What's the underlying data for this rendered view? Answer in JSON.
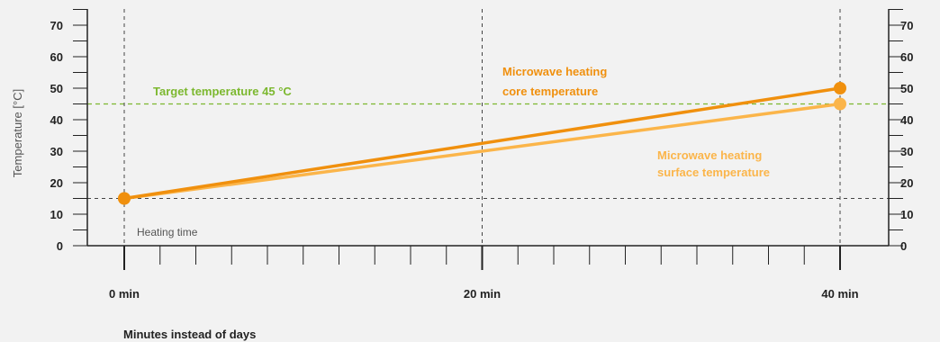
{
  "chart_data": {
    "type": "line",
    "title": "",
    "xlabel": "Minutes instead of days",
    "ylabel": "Temperature [°C]",
    "x_note": "Heating time",
    "x": [
      0,
      40
    ],
    "x_ticks": [
      {
        "value": 0,
        "label": "0 min"
      },
      {
        "value": 20,
        "label": "20 min"
      },
      {
        "value": 40,
        "label": "40 min"
      }
    ],
    "xlim": [
      0,
      40
    ],
    "ylim": [
      0,
      75
    ],
    "y_ticks": [
      0,
      10,
      20,
      30,
      40,
      50,
      60,
      70
    ],
    "y_ticks_right": true,
    "grid": false,
    "series": [
      {
        "name": "Microwave heating core temperature",
        "label_lines": [
          "Microwave heating",
          "core temperature"
        ],
        "values": [
          15,
          50
        ],
        "color": "#f0900e"
      },
      {
        "name": "Microwave heating surface temperature",
        "label_lines": [
          "Microwave heating",
          "surface temperature"
        ],
        "values": [
          15,
          45
        ],
        "color": "#fbb54a"
      }
    ],
    "reference_lines": [
      {
        "axis": "y",
        "value": 45,
        "label": "Target temperature 45 °C",
        "color": "#7cb82f"
      },
      {
        "axis": "y",
        "value": 15,
        "label": "",
        "color": "#444444"
      },
      {
        "axis": "x",
        "value": 0,
        "color": "#444444"
      },
      {
        "axis": "x",
        "value": 20,
        "color": "#444444"
      },
      {
        "axis": "x",
        "value": 40,
        "color": "#444444"
      }
    ]
  },
  "colors": {
    "background": "#f2f2f2",
    "axis": "#222222",
    "target": "#7cb82f",
    "core": "#f0900e",
    "surface": "#fbb54a"
  }
}
